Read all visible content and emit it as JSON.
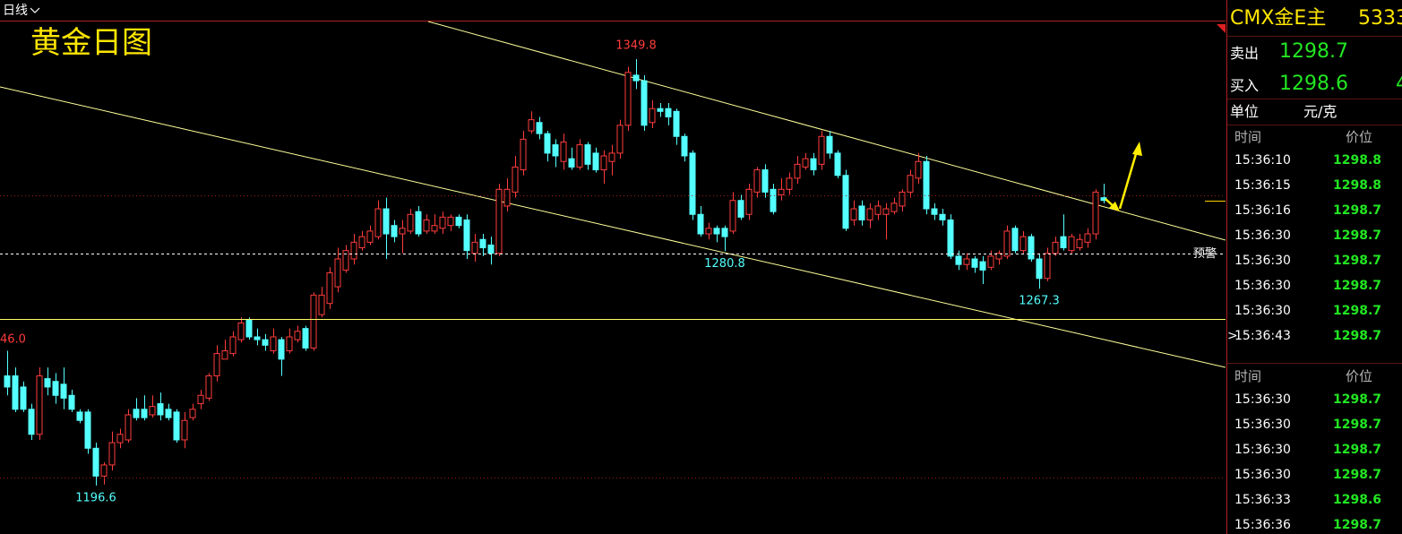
{
  "chart_data": {
    "type": "candlestick",
    "title": "黄金日图",
    "period": "日线",
    "edge_label": "46.0",
    "ylim": [
      1179.2,
      1371
    ],
    "up_color": "#ff3c3c",
    "down_color": "#54ffff",
    "open": [
      1236,
      1236,
      1232,
      1224,
      1215,
      1235,
      1234,
      1233,
      1229,
      1223,
      1223,
      1210,
      1200,
      1204,
      1212,
      1213,
      1224,
      1224,
      1222,
      1226,
      1224,
      1223,
      1213,
      1221,
      1226,
      1228,
      1236,
      1242,
      1244,
      1249,
      1256,
      1250,
      1249,
      1245,
      1249,
      1245,
      1249,
      1253,
      1246,
      1258,
      1262,
      1268,
      1274,
      1278,
      1282,
      1284,
      1286,
      1296,
      1290,
      1287,
      1288,
      1295,
      1288,
      1288,
      1289,
      1290,
      1293,
      1292,
      1280,
      1285,
      1283,
      1280,
      1297,
      1302,
      1310,
      1324,
      1327,
      1323,
      1319,
      1313,
      1314,
      1311,
      1319,
      1316,
      1310,
      1313,
      1316,
      1326,
      1344,
      1342,
      1327,
      1332,
      1332,
      1331,
      1322,
      1316,
      1294,
      1287,
      1289,
      1289,
      1288,
      1299,
      1294,
      1302,
      1310,
      1303,
      1301,
      1303,
      1307,
      1311,
      1314,
      1312,
      1322,
      1316,
      1308,
      1292,
      1297,
      1292,
      1294,
      1294,
      1295,
      1297,
      1302,
      1307,
      1313,
      1296,
      1294,
      1292,
      1279,
      1276,
      1278,
      1277,
      1275,
      1278,
      1279,
      1289,
      1281,
      1286,
      1278,
      1271,
      1280,
      1286,
      1281,
      1282,
      1284,
      1287,
      1300
    ],
    "high": [
      1245,
      1239,
      1234,
      1226,
      1239,
      1239,
      1237,
      1239,
      1231,
      1224,
      1224,
      1212,
      1205,
      1216,
      1217,
      1224,
      1228,
      1229,
      1229,
      1230,
      1226,
      1224,
      1223,
      1226,
      1231,
      1237,
      1247,
      1249,
      1252,
      1257,
      1257,
      1253,
      1251,
      1253,
      1250,
      1253,
      1254,
      1254,
      1266,
      1268,
      1275,
      1282,
      1283,
      1287,
      1288,
      1290,
      1299,
      1300,
      1292,
      1292,
      1296,
      1297,
      1294,
      1294,
      1295,
      1294,
      1294,
      1294,
      1287,
      1287,
      1286,
      1305,
      1307,
      1315,
      1324,
      1331,
      1329,
      1324,
      1321,
      1323,
      1318,
      1321,
      1320,
      1318,
      1317,
      1319,
      1328,
      1347,
      1349.8,
      1344,
      1335,
      1334,
      1334,
      1332,
      1323,
      1317,
      1297,
      1291,
      1290,
      1290,
      1302,
      1301,
      1305,
      1311,
      1312,
      1305,
      1307,
      1309,
      1315,
      1316,
      1316,
      1324,
      1324,
      1317,
      1310,
      1299,
      1299,
      1298,
      1299,
      1298,
      1300,
      1303,
      1310,
      1316,
      1315,
      1298,
      1296,
      1294,
      1281,
      1280,
      1279,
      1279,
      1281,
      1281,
      1290,
      1290,
      1288,
      1287,
      1280,
      1282,
      1286,
      1294,
      1287,
      1287,
      1289,
      1303,
      1305
    ],
    "low": [
      1229,
      1223,
      1223,
      1213,
      1213,
      1229,
      1226,
      1224,
      1223,
      1219,
      1208,
      1196.6,
      1197,
      1202,
      1210,
      1212,
      1220,
      1220,
      1221,
      1220,
      1220,
      1212,
      1210,
      1220,
      1224,
      1227,
      1234,
      1242,
      1243,
      1248,
      1249,
      1247,
      1245,
      1244,
      1236,
      1244,
      1248,
      1245,
      1245,
      1257,
      1260,
      1266,
      1273,
      1276,
      1281,
      1283,
      1285,
      1278,
      1284,
      1280,
      1287,
      1286,
      1287,
      1287,
      1287,
      1288,
      1289,
      1278,
      1277,
      1279,
      1276,
      1279,
      1295,
      1300,
      1308,
      1323,
      1321,
      1313,
      1311,
      1310,
      1310,
      1310,
      1310,
      1309,
      1305,
      1308,
      1314,
      1324,
      1339,
      1324,
      1325,
      1329,
      1326,
      1319,
      1313,
      1292,
      1286,
      1285,
      1284,
      1280.8,
      1287,
      1292,
      1292,
      1300,
      1300,
      1294,
      1299,
      1301,
      1305,
      1310,
      1308,
      1310,
      1314,
      1307,
      1288,
      1290,
      1290,
      1289,
      1292,
      1285,
      1294,
      1295,
      1300,
      1305,
      1294,
      1292,
      1290,
      1278,
      1274,
      1274,
      1273,
      1269,
      1274,
      1276,
      1278,
      1280,
      1280,
      1277,
      1267.3,
      1270,
      1279,
      1281,
      1280,
      1281,
      1282,
      1285,
      1298
    ],
    "close": [
      1232,
      1224,
      1224,
      1215,
      1236,
      1232,
      1229,
      1228,
      1224,
      1220,
      1210,
      1200,
      1204,
      1212,
      1215,
      1222,
      1221,
      1221,
      1225,
      1222,
      1221,
      1213,
      1220,
      1224,
      1229,
      1236,
      1244,
      1245,
      1250,
      1255,
      1250,
      1249,
      1247,
      1250,
      1242,
      1250,
      1252,
      1246,
      1265,
      1265,
      1273,
      1278,
      1281,
      1284,
      1286,
      1288,
      1296,
      1287,
      1286,
      1289,
      1294,
      1287,
      1292,
      1290,
      1293,
      1293,
      1290,
      1281,
      1284,
      1282,
      1280,
      1303,
      1303,
      1311,
      1321,
      1328,
      1323,
      1316,
      1315,
      1320,
      1311,
      1319,
      1312,
      1310,
      1315,
      1316,
      1326,
      1345,
      1342,
      1326,
      1332,
      1331,
      1329,
      1322,
      1315,
      1294,
      1287,
      1289,
      1287,
      1286,
      1299,
      1293,
      1303,
      1310,
      1302,
      1295,
      1303,
      1307,
      1312,
      1314,
      1310,
      1322,
      1316,
      1308,
      1289,
      1296,
      1292,
      1296,
      1297,
      1296,
      1298,
      1302,
      1308,
      1313,
      1296,
      1294,
      1292,
      1279,
      1276,
      1278,
      1275,
      1274,
      1279,
      1280,
      1288,
      1281,
      1286,
      1278,
      1271,
      1280,
      1284,
      1282,
      1286,
      1285,
      1287,
      1302,
      1299
    ],
    "price_lines": [
      {
        "value": 1280,
        "label": "预警",
        "color": "#ffffff",
        "style": "dashed"
      },
      {
        "value": 1256.5,
        "color": "#ffff66",
        "style": "solid"
      },
      {
        "value": 1300.9,
        "color": "#a01e1e",
        "style": "dotted"
      },
      {
        "value": 1199.5,
        "color": "#a01e1e",
        "style": "dotted"
      }
    ]
  },
  "panel": {
    "name": "CMX金E主",
    "code": "5333",
    "sell_label": "卖出",
    "sell": 1298.7,
    "buy_label": "买入",
    "buy": 1298.6,
    "buy_extra": "4",
    "unit_label": "单位",
    "unit": "元/克",
    "trades": [
      {
        "header": [
          "时间",
          "价位"
        ],
        "rows": [
          [
            "15:36:10",
            1298.8
          ],
          [
            "15:36:15",
            1298.8
          ],
          [
            "15:36:16",
            1298.7
          ],
          [
            "15:36:30",
            1298.7
          ],
          [
            "15:36:30",
            1298.7
          ],
          [
            "15:36:30",
            1298.7
          ],
          [
            "15:36:30",
            1298.7
          ],
          [
            "15:36:43",
            1298.7
          ]
        ]
      },
      {
        "header": [
          "时间",
          "价位"
        ],
        "rows": [
          [
            "15:36:30",
            1298.7
          ],
          [
            "15:36:30",
            1298.7
          ],
          [
            "15:36:30",
            1298.7
          ],
          [
            "15:36:30",
            1298.7
          ],
          [
            "15:36:33",
            1298.6
          ],
          [
            "15:36:36",
            1298.7
          ]
        ]
      }
    ]
  }
}
